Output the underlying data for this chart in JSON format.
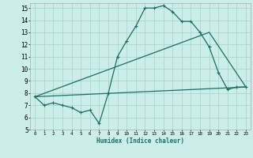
{
  "xlabel": "Humidex (Indice chaleur)",
  "bg_color": "#cceee8",
  "grid_color": "#aad8d0",
  "line_color": "#1a6e65",
  "xlim": [
    -0.5,
    23.5
  ],
  "ylim": [
    5,
    15.4
  ],
  "xticks": [
    0,
    1,
    2,
    3,
    4,
    5,
    6,
    7,
    8,
    9,
    10,
    11,
    12,
    13,
    14,
    15,
    16,
    17,
    18,
    19,
    20,
    21,
    22,
    23
  ],
  "yticks": [
    5,
    6,
    7,
    8,
    9,
    10,
    11,
    12,
    13,
    14,
    15
  ],
  "line1_x": [
    0,
    1,
    2,
    3,
    4,
    5,
    6,
    7,
    8,
    9,
    10,
    11,
    12,
    13,
    14,
    15,
    16,
    17,
    18,
    19,
    20,
    21,
    22,
    23
  ],
  "line1_y": [
    7.7,
    7.0,
    7.2,
    7.0,
    6.8,
    6.4,
    6.6,
    5.5,
    8.0,
    11.0,
    12.3,
    13.5,
    15.0,
    15.0,
    15.2,
    14.7,
    13.9,
    13.9,
    13.0,
    11.8,
    9.7,
    8.3,
    8.5,
    8.5
  ],
  "line2_x": [
    0,
    23
  ],
  "line2_y": [
    7.7,
    8.5
  ],
  "line3_x": [
    0,
    19,
    23
  ],
  "line3_y": [
    7.7,
    13.0,
    8.5
  ]
}
